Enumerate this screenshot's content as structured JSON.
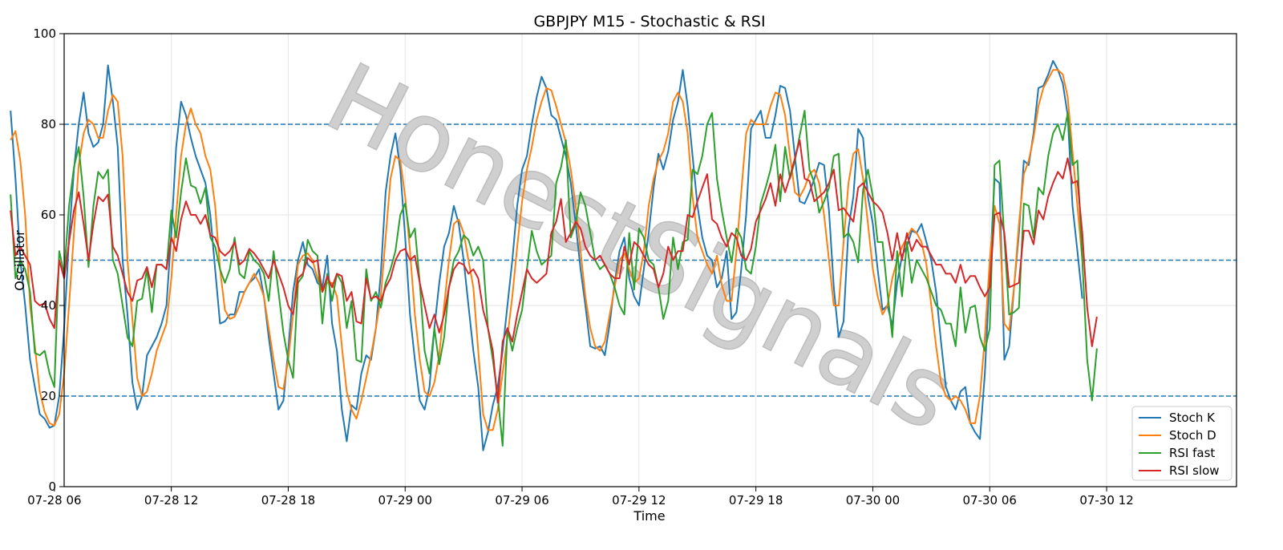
{
  "chart_data": {
    "type": "line",
    "title": "GBPJPY M15 - Stochastic & RSI",
    "xlabel": "Time",
    "ylabel": "Oscillator",
    "ylim": [
      0,
      100
    ],
    "xlim": [
      "07-28 02:30",
      "07-30 13:00"
    ],
    "yticks": [
      0,
      20,
      40,
      60,
      80,
      100
    ],
    "xticks": [
      "07-28 06",
      "07-28 12",
      "07-28 18",
      "07-29 00",
      "07-29 06",
      "07-29 12",
      "07-29 18",
      "07-30 00",
      "07-30 06",
      "07-30 12"
    ],
    "hlines": [
      20,
      50,
      80
    ],
    "grid": true,
    "legend_position": "lower-right",
    "x_start": "07-28 03:45",
    "x_step": "15 min",
    "watermark": "HonestSignals",
    "colors": {
      "stoch_k": "#1f77b4",
      "stoch_d": "#ff7f0e",
      "rsi_fast": "#2ca02c",
      "rsi_slow": "#d62728",
      "hline": "#1f77b4"
    },
    "series": [
      {
        "name": "Stoch K",
        "values": [
          83,
          68,
          50,
          40,
          28,
          22,
          16,
          15,
          13,
          13.5,
          20,
          35,
          55,
          70,
          80,
          87,
          78,
          75,
          76,
          80,
          93,
          85,
          75,
          50,
          38,
          23,
          17,
          20,
          29,
          31,
          33,
          36,
          40,
          56,
          75,
          85,
          82,
          77,
          73,
          70,
          67,
          60,
          48,
          36,
          36.5,
          38,
          38,
          43,
          43,
          45,
          46,
          48,
          42,
          33,
          25,
          17,
          19,
          30,
          43,
          50,
          54,
          49,
          48,
          45,
          44,
          51,
          36,
          30,
          17,
          10,
          18,
          17,
          25,
          29,
          28,
          35,
          47,
          65,
          73,
          78,
          70,
          55,
          38,
          28,
          19,
          17,
          22,
          35,
          45,
          53,
          56,
          62,
          58,
          50,
          40,
          30,
          22,
          8,
          12,
          18,
          22,
          30,
          40,
          50,
          62,
          70,
          73,
          80,
          86,
          90.5,
          88,
          82,
          81,
          77,
          73,
          67,
          58,
          48,
          40,
          31,
          30.5,
          31,
          29,
          36,
          45,
          52,
          55,
          46,
          42,
          40,
          48,
          56,
          66,
          73.5,
          70,
          74,
          81,
          85,
          92,
          84,
          73,
          62,
          55,
          51,
          50,
          44,
          46,
          52,
          37,
          38.5,
          48,
          60,
          79,
          81,
          83,
          77,
          77,
          82,
          88.5,
          88,
          83,
          73,
          63,
          62.5,
          65,
          68,
          71.5,
          71,
          61,
          44,
          33,
          36.5,
          57,
          64,
          79,
          77,
          64,
          58,
          48,
          39,
          40,
          35.5,
          45,
          51,
          53,
          56.5,
          56,
          58,
          54,
          50,
          43,
          32,
          22,
          19,
          17,
          21,
          22,
          14,
          12,
          10.5,
          25,
          47,
          68,
          67,
          28,
          31,
          44,
          56,
          72,
          71,
          78,
          88,
          88.5,
          91,
          94,
          92,
          89,
          82,
          62,
          52,
          41.5
        ]
      },
      {
        "name": "Stoch D",
        "values": [
          76.5,
          78.5,
          72,
          60,
          40,
          31,
          21,
          16.5,
          14,
          13.5,
          16,
          25,
          40,
          56,
          71,
          78,
          81,
          80,
          77,
          77,
          83,
          86.5,
          85,
          73,
          50,
          37,
          24,
          20,
          21,
          25,
          30,
          33,
          36,
          46,
          60,
          73,
          80,
          83.5,
          80,
          78,
          73,
          70,
          62,
          48,
          39,
          37,
          37.5,
          40,
          43,
          45,
          47,
          45,
          42,
          35,
          28,
          22,
          21.5,
          28,
          38,
          49,
          51,
          51.5,
          50,
          46,
          43,
          45,
          45,
          42,
          31,
          21,
          17,
          15,
          19,
          24,
          29,
          35,
          42,
          55,
          68,
          73,
          72,
          64,
          52,
          38,
          28,
          21,
          20,
          23,
          29,
          40,
          50,
          58,
          59,
          56,
          50,
          44,
          30,
          16,
          12.5,
          12.5,
          17,
          25,
          33,
          42,
          53,
          63,
          70,
          75,
          81,
          85,
          88,
          87.5,
          84,
          80,
          76,
          70,
          62,
          52,
          42,
          35,
          31,
          30,
          32,
          38,
          44,
          50,
          51.5,
          48,
          45,
          46,
          52,
          62,
          68,
          72,
          74,
          78,
          85,
          87,
          85,
          78,
          64,
          55,
          52,
          49,
          47,
          51,
          44.5,
          41,
          41,
          52,
          65,
          78,
          81,
          80,
          80,
          80,
          84,
          87,
          86.5,
          82,
          73,
          65,
          64,
          66,
          69,
          70,
          67,
          60,
          50,
          40,
          40,
          54,
          67,
          73.5,
          74.5,
          68,
          58,
          48,
          42,
          38,
          40,
          46,
          50,
          53,
          55,
          57,
          56,
          54,
          49,
          40,
          31,
          23,
          20,
          19,
          20,
          19,
          17,
          14,
          14,
          20,
          33,
          50,
          62,
          58,
          36,
          34.5,
          44,
          58,
          69,
          72,
          77,
          84,
          88,
          90,
          92,
          92,
          91,
          86,
          74,
          62,
          50
        ]
      },
      {
        "name": "RSI fast",
        "values": [
          64.5,
          46,
          50,
          48,
          43,
          29.5,
          29,
          30,
          25,
          22,
          52,
          47,
          62,
          70.5,
          75,
          64,
          48.5,
          62,
          69.5,
          68,
          70,
          50,
          47,
          40,
          33,
          31,
          41,
          41.5,
          48,
          38.5,
          49,
          49,
          48,
          61,
          55,
          65,
          72.5,
          66.5,
          66,
          62.5,
          66,
          55,
          53,
          48,
          45,
          48,
          55,
          47,
          46,
          52,
          50,
          49,
          47,
          41,
          52,
          43,
          34,
          28,
          24,
          45,
          46.5,
          54.5,
          52,
          51,
          36,
          47,
          41,
          47,
          45,
          35,
          41,
          28,
          27.5,
          48,
          41,
          43,
          39.5,
          45,
          48,
          52,
          60,
          62.5,
          55,
          57,
          45,
          30,
          25,
          35,
          27,
          33,
          44,
          50,
          52,
          55.5,
          54.5,
          51,
          53,
          50,
          35,
          28,
          20,
          9,
          35,
          30,
          35,
          39,
          48,
          56.5,
          52,
          49,
          50,
          51,
          67,
          70.5,
          76.5,
          55,
          58,
          65,
          62,
          56,
          50,
          48,
          49,
          47,
          44,
          40,
          38,
          56,
          43.5,
          57,
          55,
          50,
          49,
          44,
          37,
          41,
          55,
          48,
          54,
          54.5,
          70,
          69,
          73,
          80,
          82.5,
          68,
          61,
          55,
          49.5,
          57,
          55,
          48,
          47,
          53,
          62.5,
          66,
          70,
          75.5,
          63,
          75,
          68,
          72,
          77.5,
          83,
          70,
          67,
          60.5,
          63,
          66,
          73,
          73.5,
          55,
          56,
          54,
          49.5,
          65.5,
          70,
          64,
          54,
          54,
          43,
          33,
          52,
          42,
          54,
          45,
          50,
          48,
          46,
          43,
          40,
          39,
          36,
          36,
          31,
          44,
          34,
          39.5,
          40,
          33,
          30,
          35,
          71,
          72,
          55,
          38,
          38.5,
          39.5,
          62.5,
          62,
          55,
          66,
          64.5,
          73,
          78,
          80,
          76.5,
          82.5,
          71,
          72,
          50,
          28,
          19,
          30.5
        ]
      },
      {
        "name": "RSI slow",
        "values": [
          61,
          51,
          53,
          51,
          49,
          41,
          40,
          40.5,
          37,
          35,
          50,
          46,
          54,
          61,
          65,
          58,
          50,
          58,
          64,
          63,
          64.5,
          53,
          51,
          47,
          43,
          41,
          45.5,
          46,
          48.5,
          44,
          49,
          49,
          48,
          55,
          52,
          59,
          63,
          60,
          60,
          58,
          60,
          55.5,
          55,
          52,
          51,
          52,
          54,
          49,
          50,
          52.5,
          51.5,
          50,
          48,
          46,
          50,
          47,
          44,
          40,
          38,
          46,
          47,
          50.5,
          49.5,
          50,
          43,
          46.5,
          44,
          47,
          46.5,
          41,
          43,
          36.5,
          36,
          46,
          41.5,
          42,
          41,
          44,
          46,
          50,
          52,
          52.5,
          50,
          51,
          45,
          40,
          35,
          38,
          34,
          38,
          44,
          48,
          49.5,
          49,
          47,
          48,
          46,
          39,
          35,
          30,
          18.5,
          32,
          35,
          32,
          38,
          43,
          48,
          46,
          45,
          46,
          47,
          56,
          58.5,
          63.5,
          54,
          56,
          58.5,
          57,
          53,
          51,
          50,
          51,
          49,
          47,
          46,
          46,
          53,
          49,
          54,
          53,
          51,
          49,
          48,
          44,
          47,
          53,
          50,
          52,
          52,
          60,
          59.5,
          63,
          66,
          69,
          59,
          58,
          55,
          53,
          56,
          55,
          51,
          50,
          52.5,
          58.5,
          61,
          63.5,
          67,
          62,
          69,
          65,
          68.5,
          72.5,
          76.5,
          68,
          67.5,
          63,
          64,
          65,
          67,
          70,
          61,
          61.5,
          60,
          58.5,
          66,
          67,
          65,
          63,
          62,
          60.5,
          56,
          50,
          56,
          50,
          56,
          52,
          54.5,
          53,
          53,
          51,
          49,
          49,
          47,
          47,
          45,
          49,
          45,
          46.5,
          46.5,
          44,
          42,
          44,
          60,
          60.5,
          56,
          44,
          44.5,
          45,
          56.5,
          56.5,
          53.5,
          61,
          59,
          64,
          67,
          69.5,
          68,
          72.5,
          67,
          67.5,
          56,
          39.5,
          31,
          37.5
        ]
      }
    ]
  }
}
